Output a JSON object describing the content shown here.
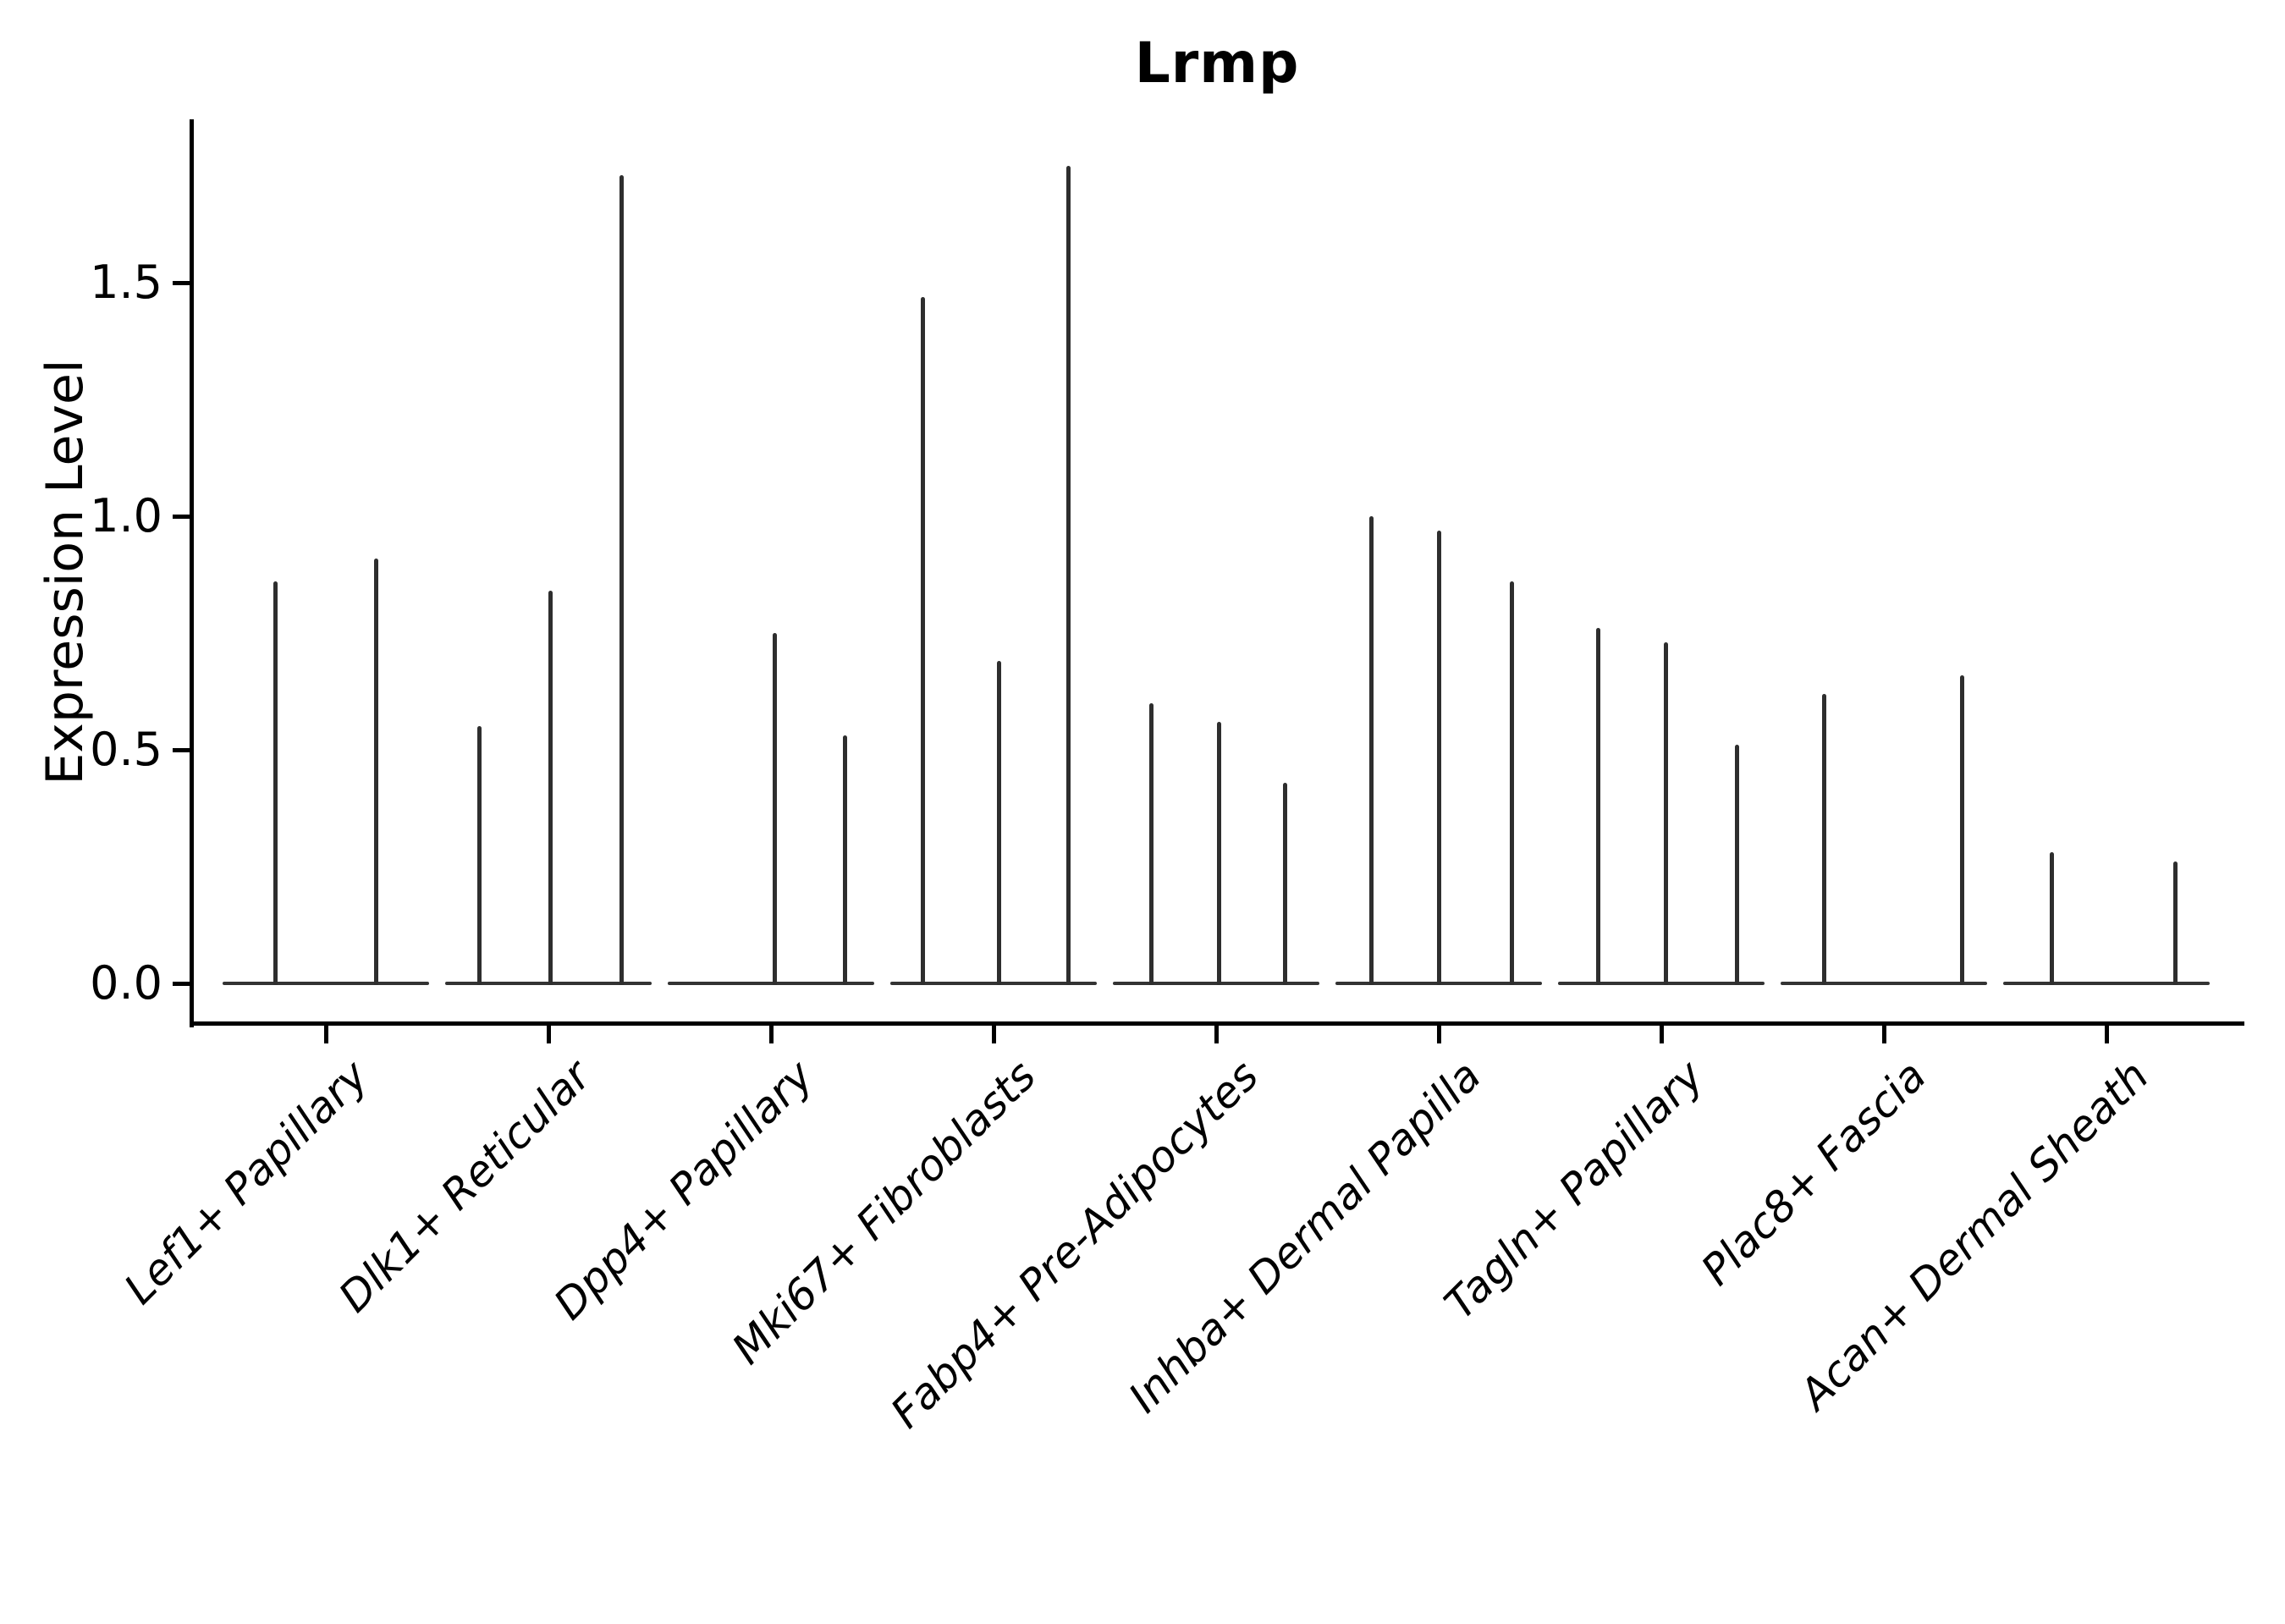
{
  "title": "Lrmp",
  "axes": {
    "ylabel": "Expression Level",
    "yticks": [
      {
        "label": "0.0",
        "value": 0.0
      },
      {
        "label": "0.5",
        "value": 0.5
      },
      {
        "label": "1.0",
        "value": 1.0
      },
      {
        "label": "1.5",
        "value": 1.5
      }
    ]
  },
  "style": {
    "spike_color": "#2e2e2e",
    "base_color": "#333333",
    "spine_color": "#000000",
    "background": "#ffffff"
  },
  "chart_data": {
    "type": "violin",
    "title": "Lrmp",
    "xlabel": "",
    "ylabel": "Expression Level",
    "ylim": [
      -0.09,
      1.85
    ],
    "yticks": [
      0.0,
      0.5,
      1.0,
      1.5
    ],
    "grid": false,
    "legend": false,
    "note": "Needle-thin violins (sparse expression); each cluster shows 2-3 narrow spikes rising from a flat base at 0",
    "categories": [
      "Lef1+ Papillary",
      "Dlk1+ Reticular",
      "Dpp4+ Papillary",
      "Mki67+ Fibroblasts",
      "Fabp4+ Pre-Adipocytes",
      "Inhba+ Dermal Papilla",
      "Tagln+ Papillary",
      "Plac8+ Fascia",
      "Acan+ Dermal Sheath"
    ],
    "groups": [
      {
        "category": "Lef1+ Papillary",
        "center_x": 385,
        "spikes": [
          {
            "x": 325,
            "max": 0.86
          },
          {
            "x": 444,
            "max": 0.91
          }
        ]
      },
      {
        "category": "Dlk1+ Reticular",
        "center_x": 648,
        "spikes": [
          {
            "x": 566,
            "max": 0.55
          },
          {
            "x": 650,
            "max": 0.84
          },
          {
            "x": 734,
            "max": 1.73
          }
        ]
      },
      {
        "category": "Dpp4+ Papillary",
        "center_x": 911,
        "spikes": [
          {
            "x": 915,
            "max": 0.75
          },
          {
            "x": 998,
            "max": 0.53
          }
        ]
      },
      {
        "category": "Mki67+ Fibroblasts",
        "center_x": 1174,
        "spikes": [
          {
            "x": 1090,
            "max": 1.47
          },
          {
            "x": 1180,
            "max": 0.69
          },
          {
            "x": 1262,
            "max": 1.75
          }
        ]
      },
      {
        "category": "Fabp4+ Pre-Adipocytes",
        "center_x": 1437,
        "spikes": [
          {
            "x": 1360,
            "max": 0.6
          },
          {
            "x": 1440,
            "max": 0.56
          },
          {
            "x": 1518,
            "max": 0.43
          }
        ]
      },
      {
        "category": "Inhba+ Dermal Papilla",
        "center_x": 1700,
        "spikes": [
          {
            "x": 1620,
            "max": 1.0
          },
          {
            "x": 1700,
            "max": 0.97
          },
          {
            "x": 1786,
            "max": 0.86
          }
        ]
      },
      {
        "category": "Tagln+ Papillary",
        "center_x": 1963,
        "spikes": [
          {
            "x": 1888,
            "max": 0.76
          },
          {
            "x": 1968,
            "max": 0.73
          },
          {
            "x": 2052,
            "max": 0.51
          }
        ]
      },
      {
        "category": "Plac8+ Fascia",
        "center_x": 2226,
        "spikes": [
          {
            "x": 2155,
            "max": 0.62
          },
          {
            "x": 2318,
            "max": 0.66
          }
        ]
      },
      {
        "category": "Acan+ Dermal Sheath",
        "center_x": 2489,
        "spikes": [
          {
            "x": 2424,
            "max": 0.28
          },
          {
            "x": 2570,
            "max": 0.26
          }
        ]
      }
    ]
  }
}
